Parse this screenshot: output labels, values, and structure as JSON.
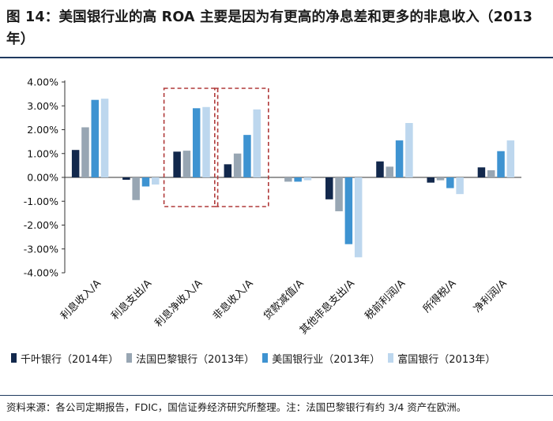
{
  "header": {
    "title": "图 14：美国银行业的高 ROA 主要是因为有更高的净息差和更多的非息收入（2013年）"
  },
  "chart_data": {
    "type": "bar",
    "title": "美国银行业的高 ROA 主要是因为有更高的净息差和更多的非息收入（2013年）",
    "xlabel": "",
    "ylabel": "",
    "ylim": [
      -4.0,
      4.0
    ],
    "yticks": [
      "4.00%",
      "3.00%",
      "2.00%",
      "1.00%",
      "0.00%",
      "-1.00%",
      "-2.00%",
      "-3.00%",
      "-4.00%"
    ],
    "categories": [
      "利息收入/A",
      "利息支出/A",
      "利息净收入/A",
      "非息收入/A",
      "贷款减值/A",
      "其他非息支出/A",
      "税前利润/A",
      "所得税/A",
      "净利润/A"
    ],
    "series": [
      {
        "name": "千叶银行（2014年）",
        "color": "#12284c",
        "values": [
          1.15,
          -0.1,
          1.08,
          0.55,
          0.0,
          -0.92,
          0.67,
          -0.22,
          0.42
        ]
      },
      {
        "name": "法国巴黎银行（2013年）",
        "color": "#98a6b3",
        "values": [
          2.1,
          -0.95,
          1.12,
          1.0,
          -0.18,
          -1.42,
          0.45,
          -0.12,
          0.3
        ]
      },
      {
        "name": "美国银行业（2013年）",
        "color": "#3e93d1",
        "values": [
          3.25,
          -0.38,
          2.9,
          1.78,
          -0.18,
          -2.8,
          1.55,
          -0.45,
          1.1
        ]
      },
      {
        "name": "富国银行（2013年）",
        "color": "#bdd7ee",
        "values": [
          3.3,
          -0.3,
          2.95,
          2.85,
          -0.12,
          -3.35,
          2.28,
          -0.7,
          1.55
        ]
      }
    ],
    "legend_position": "bottom",
    "grid": false,
    "highlight_categories": [
      "利息净收入/A",
      "非息收入/A"
    ]
  },
  "footer": {
    "source": "资料来源：各公司定期报告，FDIC，国信证券经济研究所整理。注：法国巴黎银行有约 3/4 资产在欧洲。"
  },
  "colors": {
    "rule": "#1f3a5f",
    "highlight_box": "#b03a3a"
  }
}
